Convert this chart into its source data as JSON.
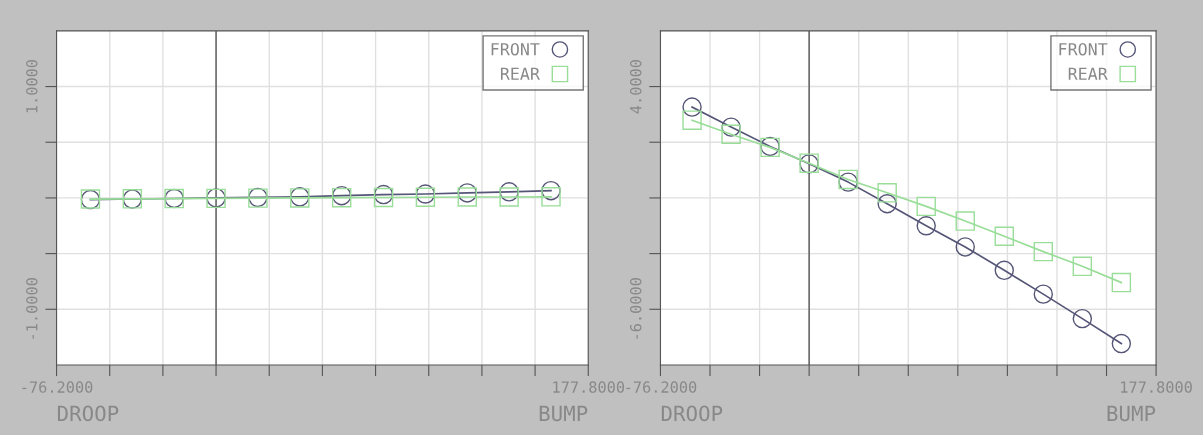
{
  "chart_data": [
    {
      "type": "line",
      "x": [
        -60,
        -40,
        -20,
        0,
        20,
        40,
        60,
        80,
        100,
        120,
        140,
        160
      ],
      "series": [
        {
          "name": "FRONT",
          "color": "#555577",
          "marker": "circle",
          "values": [
            -0.015,
            -0.01,
            -0.005,
            0,
            0.005,
            0.01,
            0.02,
            0.03,
            0.035,
            0.045,
            0.055,
            0.065
          ]
        },
        {
          "name": "REAR",
          "color": "#99dd99",
          "marker": "square",
          "values": [
            -0.01,
            -0.008,
            -0.006,
            -0.004,
            -0.002,
            0,
            0.002,
            0.004,
            0.006,
            0.008,
            0.008,
            0.01
          ]
        }
      ],
      "xlim": [
        -76.2,
        177.8
      ],
      "xticks": [
        {
          "value": -76.2,
          "label": "-76.2000"
        },
        {
          "value": -50.8,
          "label": null
        },
        {
          "value": -25.4,
          "label": null
        },
        {
          "value": 0,
          "label": null
        },
        {
          "value": 25.4,
          "label": null
        },
        {
          "value": 50.8,
          "label": null
        },
        {
          "value": 76.2,
          "label": null
        },
        {
          "value": 101.6,
          "label": null
        },
        {
          "value": 127,
          "label": null
        },
        {
          "value": 152.4,
          "label": null
        },
        {
          "value": 177.8,
          "label": "177.8000"
        }
      ],
      "ylim": [
        -1.5,
        1.5
      ],
      "yticks": [
        {
          "value": -1,
          "label": "-1.0000"
        },
        {
          "value": -0.5,
          "label": null
        },
        {
          "value": 0,
          "label": null
        },
        {
          "value": 0.5,
          "label": null
        },
        {
          "value": 1,
          "label": "1.0000"
        }
      ],
      "ref_lines": [
        {
          "axis": "x",
          "value": 0,
          "color": "#555555"
        }
      ],
      "annotations": [
        "DROOP",
        "BUMP"
      ],
      "grid": true,
      "legend": "top right"
    },
    {
      "type": "line",
      "x": [
        -60,
        -40,
        -20,
        0,
        20,
        40,
        60,
        80,
        100,
        120,
        140,
        160
      ],
      "series": [
        {
          "name": "FRONT",
          "color": "#555577",
          "marker": "circle",
          "values": [
            3.08,
            2.18,
            1.31,
            0.53,
            -0.29,
            -1.26,
            -2.25,
            -3.2,
            -4.25,
            -5.32,
            -6.42,
            -7.54
          ]
        },
        {
          "name": "REAR",
          "color": "#99dd99",
          "marker": "square",
          "values": [
            2.49,
            1.86,
            1.27,
            0.56,
            -0.17,
            -0.77,
            -1.38,
            -2.04,
            -2.72,
            -3.41,
            -4.07,
            -4.8
          ]
        }
      ],
      "xlim": [
        -76.2,
        177.8
      ],
      "xticks": [
        {
          "value": -76.2,
          "label": "-76.2000"
        },
        {
          "value": -50.8,
          "label": null
        },
        {
          "value": -25.4,
          "label": null
        },
        {
          "value": 0,
          "label": null
        },
        {
          "value": 25.4,
          "label": null
        },
        {
          "value": 50.8,
          "label": null
        },
        {
          "value": 76.2,
          "label": null
        },
        {
          "value": 101.6,
          "label": null
        },
        {
          "value": 127,
          "label": null
        },
        {
          "value": 152.4,
          "label": null
        },
        {
          "value": 177.8,
          "label": "177.8000"
        }
      ],
      "ylim": [
        -8.5,
        6.5
      ],
      "yticks": [
        {
          "value": -6,
          "label": "-6.0000"
        },
        {
          "value": -3.5,
          "label": null
        },
        {
          "value": -1,
          "label": null
        },
        {
          "value": 1.5,
          "label": null
        },
        {
          "value": 4,
          "label": "4.0000"
        }
      ],
      "ref_lines": [
        {
          "axis": "x",
          "value": 0,
          "color": "#555555"
        }
      ],
      "annotations": [
        "DROOP",
        "BUMP"
      ],
      "grid": true,
      "legend": "top right"
    }
  ]
}
